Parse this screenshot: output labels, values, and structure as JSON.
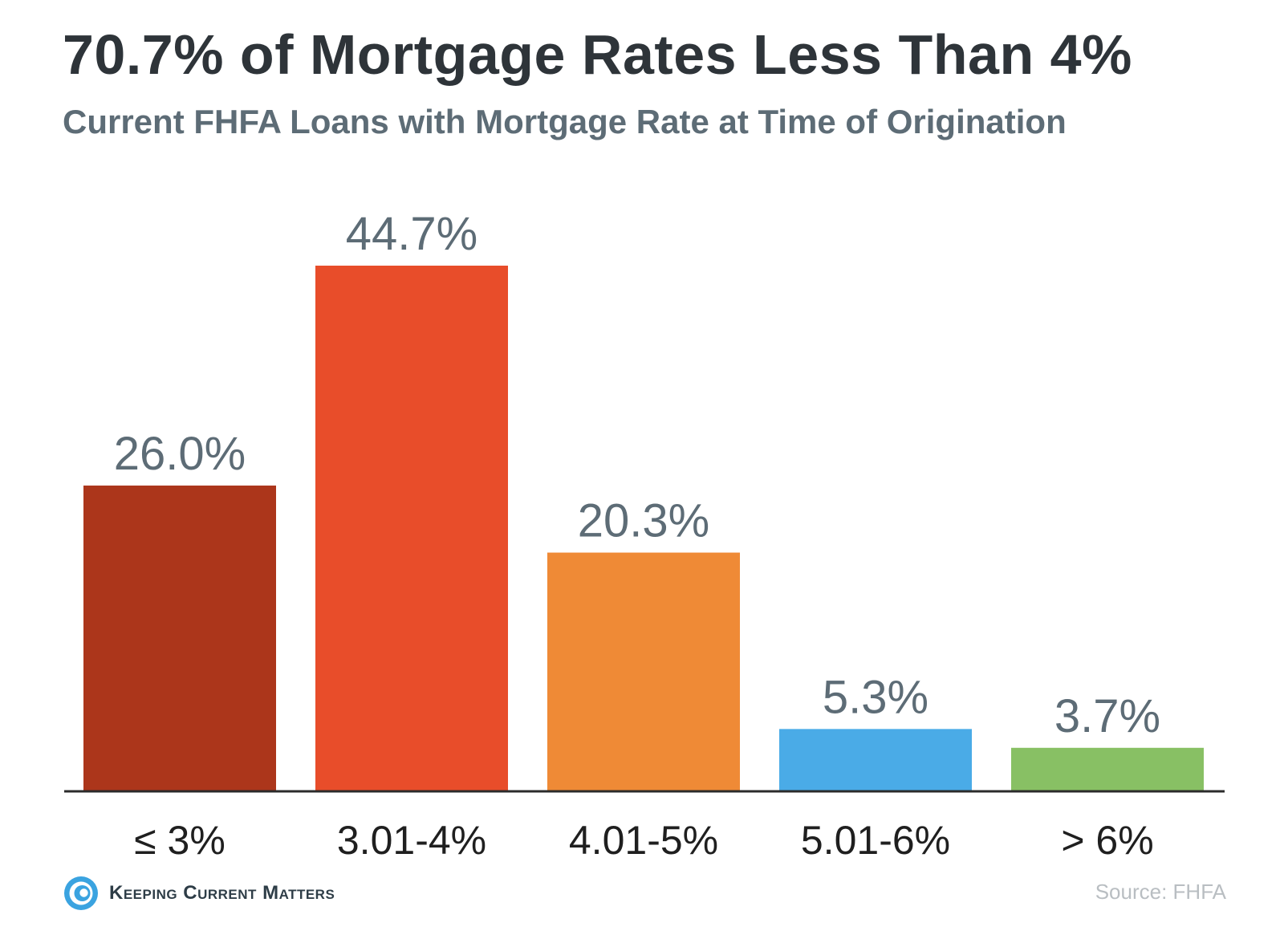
{
  "chart_data": {
    "type": "bar",
    "title": "70.7% of Mortgage Rates Less Than 4%",
    "subtitle": "Current FHFA Loans with Mortgage Rate at Time of Origination",
    "categories": [
      "≤ 3%",
      "3.01-4%",
      "4.01-5%",
      "5.01-6%",
      "> 6%"
    ],
    "values": [
      26.0,
      44.7,
      20.3,
      5.3,
      3.7
    ],
    "data_labels": [
      "26.0%",
      "44.7%",
      "20.3%",
      "5.3%",
      "3.7%"
    ],
    "colors": [
      "#ac361b",
      "#e84d2a",
      "#ef8a36",
      "#4aabe7",
      "#88c064"
    ],
    "xlabel": "",
    "ylabel": "",
    "ylim": [
      0,
      44.7
    ],
    "grid": false,
    "legend": "none"
  },
  "footer": {
    "brand": "Keeping Current Matters",
    "source": "Source: FHFA"
  },
  "colors": {
    "title": "#2e3439",
    "subtitle": "#5d6c76",
    "data_label": "#5d6c76",
    "axis_line": "#2b2b2b",
    "category_label": "#1f1f1f",
    "logo_blue": "#3aa3e0",
    "source": "#b9bec2"
  }
}
